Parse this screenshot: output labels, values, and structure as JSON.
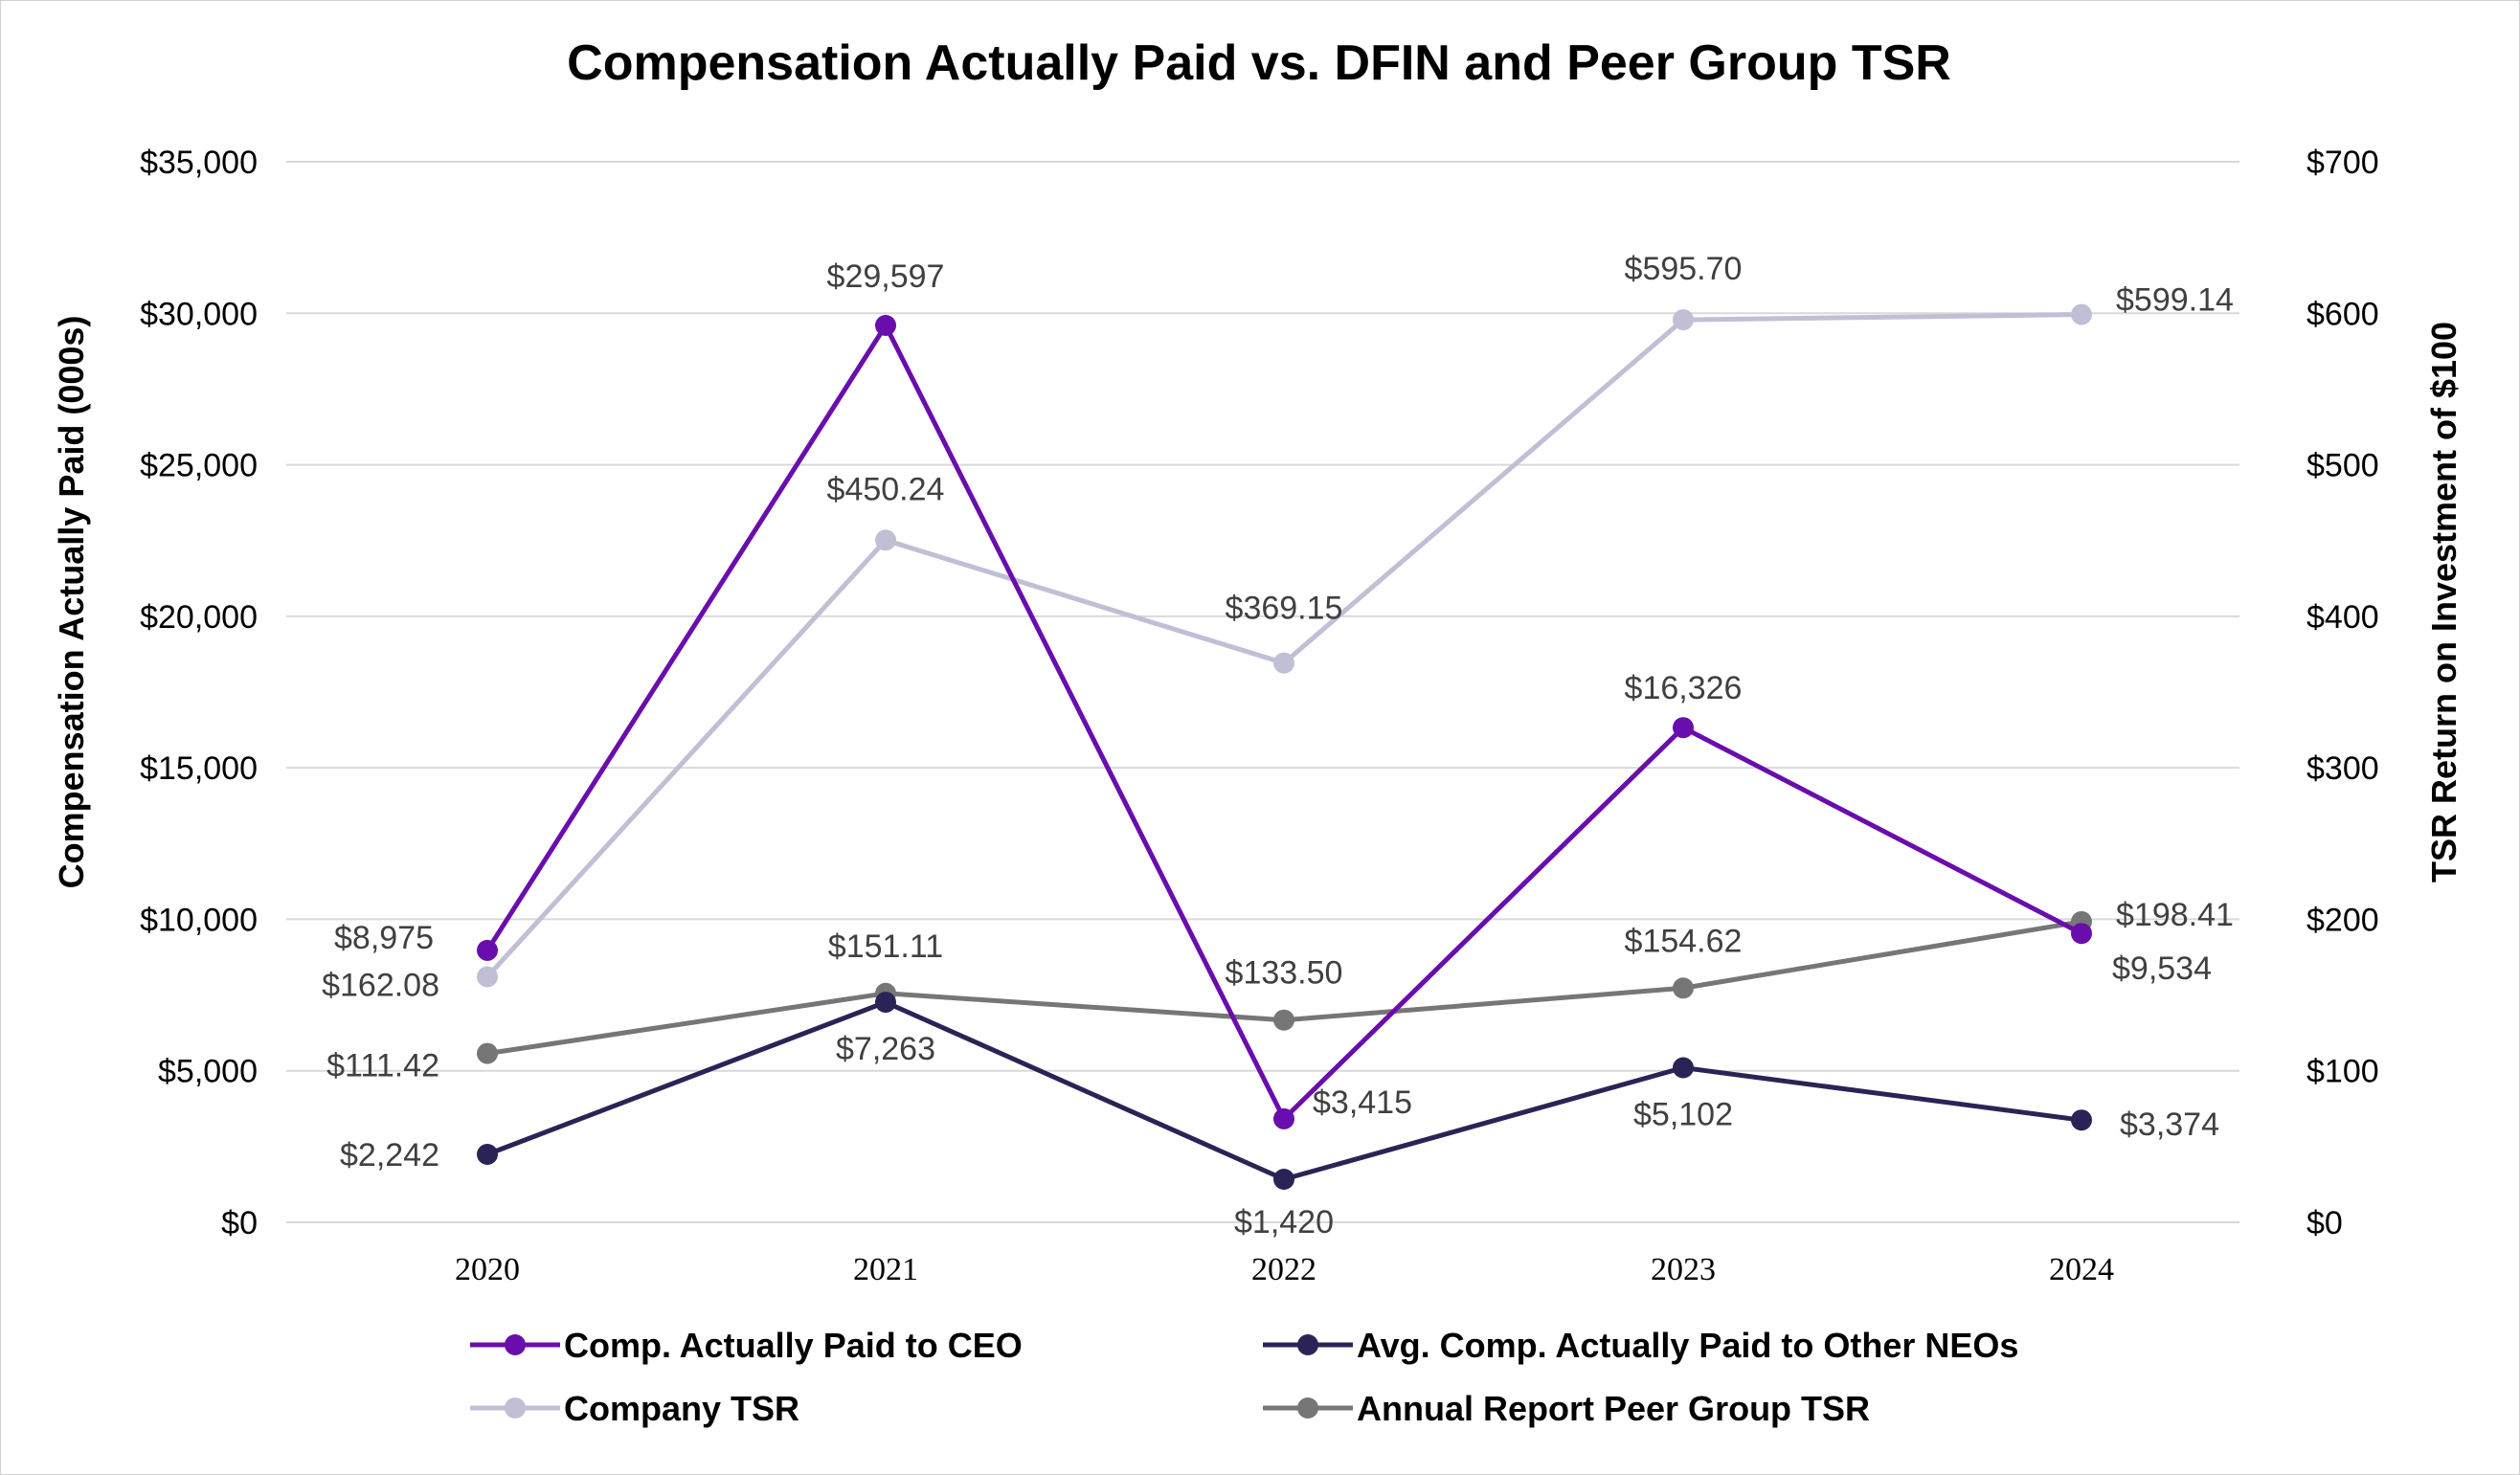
{
  "chart_data": {
    "type": "line",
    "title": "Compensation Actually Paid vs. DFIN and Peer Group TSR",
    "xlabel": "",
    "ylabel": "Compensation Actually Paid (000s)",
    "y2label": "TSR Return on Investment of $100",
    "categories": [
      "2020",
      "2021",
      "2022",
      "2023",
      "2024"
    ],
    "ylim": [
      0,
      35000
    ],
    "y2lim": [
      0,
      700
    ],
    "yticks": [
      "$0",
      "$5,000",
      "$10,000",
      "$15,000",
      "$20,000",
      "$25,000",
      "$30,000",
      "$35,000"
    ],
    "y2ticks": [
      "$0",
      "$100",
      "$200",
      "$300",
      "$400",
      "$500",
      "$600",
      "$700"
    ],
    "grid": true,
    "legend_position": "bottom",
    "series": [
      {
        "name": "Comp. Actually Paid to CEO",
        "axis": "left",
        "color": "#6a0dad",
        "values": [
          8975,
          29597,
          3415,
          16326,
          9534
        ],
        "labels": [
          "$8,975",
          "$29,597",
          "$3,415",
          "$16,326",
          "$9,534"
        ]
      },
      {
        "name": "Avg. Comp. Actually Paid to Other NEOs",
        "axis": "left",
        "color": "#2a2456",
        "values": [
          2242,
          7263,
          1420,
          5102,
          3374
        ],
        "labels": [
          "$2,242",
          "$7,263",
          "$1,420",
          "$5,102",
          "$3,374"
        ]
      },
      {
        "name": "Company TSR",
        "axis": "right",
        "color": "#c0bfd6",
        "values": [
          162.08,
          450.24,
          369.15,
          595.7,
          599.14
        ],
        "labels": [
          "$162.08",
          "$450.24",
          "$369.15",
          "$595.70",
          "$599.14"
        ]
      },
      {
        "name": "Annual Report Peer Group TSR",
        "axis": "right",
        "color": "#767676",
        "values": [
          111.42,
          151.11,
          133.5,
          154.62,
          198.41
        ],
        "labels": [
          "$111.42",
          "$151.11",
          "$133.50",
          "$154.62",
          "$198.41"
        ]
      }
    ]
  }
}
